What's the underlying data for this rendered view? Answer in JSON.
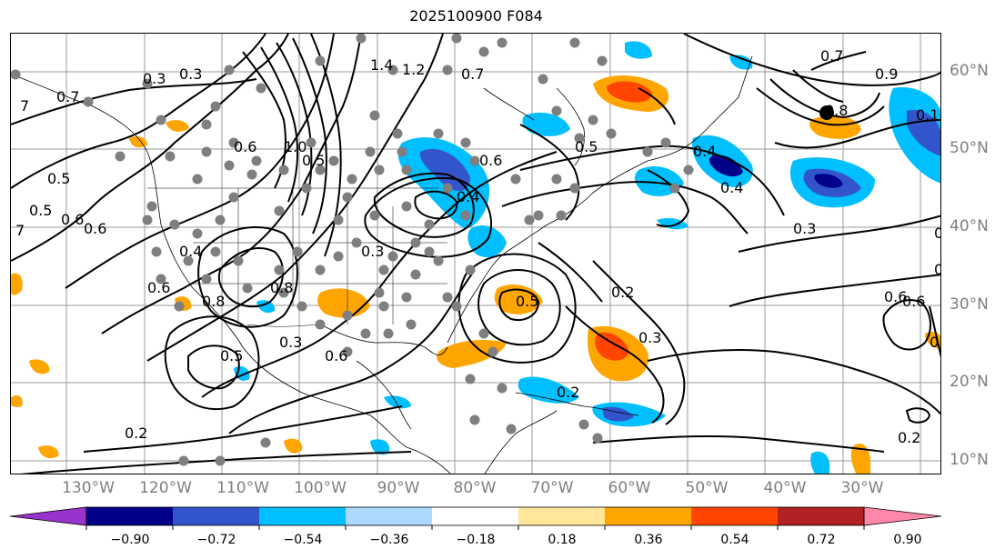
{
  "title": "2025100900 F084",
  "longitude_labels": [
    "130°W",
    "120°W",
    "110°W",
    "100°W",
    "90°W",
    "80°W",
    "70°W",
    "60°W",
    "50°W",
    "40°W",
    "30°W"
  ],
  "latitude_labels": [
    "60°N",
    "50°N",
    "40°N",
    "30°N",
    "20°N",
    "10°N"
  ],
  "contour_labels": [
    "7",
    "0.5",
    "0.3",
    "0.6",
    "0.5",
    "0.6",
    "7",
    "0.4",
    "0.8",
    "0.6",
    "0.5",
    "0.6",
    "0.7",
    "0.3",
    "0.2",
    "0.3",
    "0.8",
    "1.0",
    "0.7",
    "0.9",
    "0.8",
    "0.1",
    "1.4",
    "1.2",
    "0.7",
    "0.6",
    "0.4",
    "0.5",
    "0.4",
    "0.4",
    "0.3",
    "0.5",
    "0.2",
    "0.3",
    "0.6",
    "0.6",
    "0.5",
    "0.2",
    "0.5",
    "0.3",
    "0.6",
    "0.2",
    "0.2",
    "0.7"
  ],
  "colorbar": {
    "tick_labels": [
      "−0.90",
      "−0.72",
      "−0.54",
      "−0.36",
      "−0.18",
      "0.18",
      "0.36",
      "0.54",
      "0.72",
      "0.90"
    ],
    "colors": [
      "#9933cc",
      "#00008b",
      "#3355cc",
      "#00bfff",
      "#add8ff",
      "#ffffff",
      "#ffe699",
      "#ffa500",
      "#ff4500",
      "#b22222",
      "#ff88aa"
    ]
  }
}
